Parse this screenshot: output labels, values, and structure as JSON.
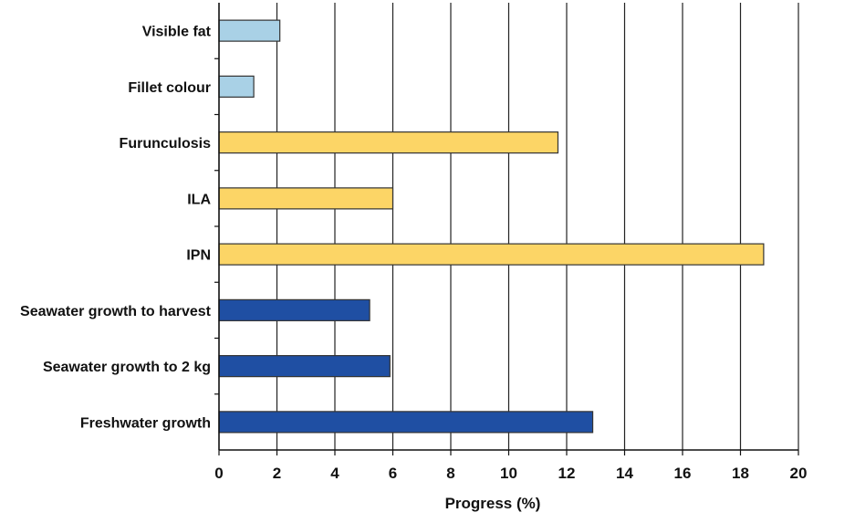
{
  "chart_data": {
    "type": "bar",
    "orientation": "horizontal",
    "xlabel": "Progress (%)",
    "ylabel": "",
    "xlim": [
      0,
      20
    ],
    "xticks": [
      0,
      2,
      4,
      6,
      8,
      10,
      12,
      14,
      16,
      18,
      20
    ],
    "grid": "vertical",
    "categories": [
      "Visible fat",
      "Fillet colour",
      "Furunculosis",
      "ILA",
      "IPN",
      "Seawater growth to harvest",
      "Seawater growth to 2 kg",
      "Freshwater growth"
    ],
    "values": [
      2.1,
      1.2,
      11.7,
      6.0,
      18.8,
      5.2,
      5.9,
      12.9
    ],
    "colors": [
      "#a9d1e6",
      "#a9d1e6",
      "#fcd566",
      "#fcd566",
      "#fcd566",
      "#1f4fa3",
      "#1f4fa3",
      "#1f4fa3"
    ]
  }
}
